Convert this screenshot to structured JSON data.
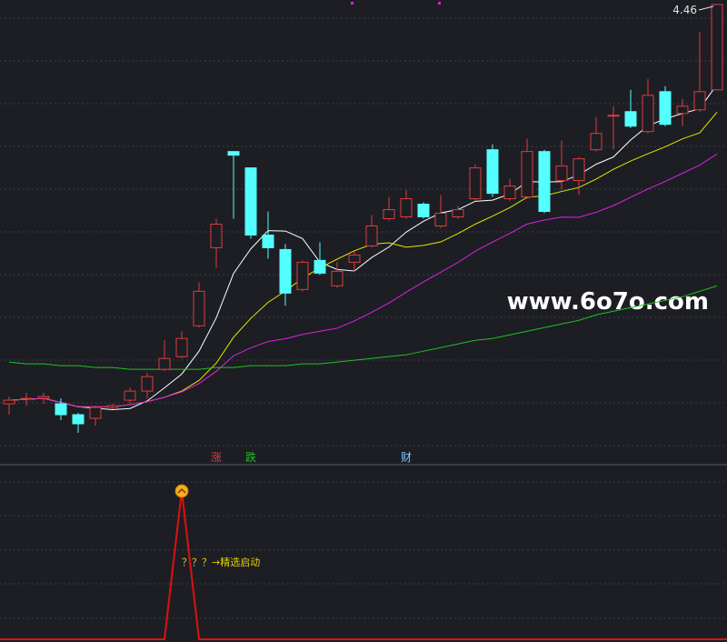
{
  "chart_data": {
    "type": "candlestick",
    "peak_label": "4.46",
    "watermark": "www.6o7o.com",
    "up_color": "#e03c3c",
    "down_color": "#54ffff",
    "ma_colors": [
      "#ffffff",
      "#e6e600",
      "#e020e0"
    ],
    "open": [
      2.26,
      2.29,
      2.29,
      2.26,
      2.2,
      2.18,
      2.24,
      2.28,
      2.33,
      2.45,
      2.52,
      2.69,
      3.12,
      3.65,
      3.56,
      3.19,
      3.11,
      2.89,
      3.05,
      2.91,
      3.04,
      3.13,
      3.28,
      3.29,
      3.36,
      3.24,
      3.29,
      3.39,
      3.66,
      3.39,
      3.4,
      3.65,
      3.49,
      3.49,
      3.66,
      3.85,
      3.87,
      3.76,
      3.98,
      3.86,
      3.88,
      3.99
    ],
    "high": [
      2.3,
      2.32,
      2.32,
      2.29,
      2.21,
      2.25,
      2.26,
      2.35,
      2.43,
      2.61,
      2.66,
      2.93,
      3.28,
      3.65,
      3.56,
      3.32,
      3.14,
      3.05,
      3.15,
      3.04,
      3.1,
      3.3,
      3.4,
      3.44,
      3.37,
      3.41,
      3.35,
      3.58,
      3.69,
      3.5,
      3.72,
      3.66,
      3.71,
      3.62,
      3.84,
      3.9,
      3.99,
      4.05,
      4.01,
      3.94,
      4.31,
      4.46
    ],
    "low": [
      2.2,
      2.25,
      2.26,
      2.17,
      2.1,
      2.14,
      2.23,
      2.26,
      2.29,
      2.44,
      2.51,
      2.68,
      3.01,
      3.28,
      3.17,
      3.06,
      2.8,
      2.88,
      2.97,
      2.9,
      2.99,
      3.12,
      3.27,
      3.28,
      3.28,
      3.23,
      3.28,
      3.38,
      3.4,
      3.38,
      3.39,
      3.31,
      3.44,
      3.41,
      3.65,
      3.66,
      3.78,
      3.75,
      3.79,
      3.79,
      3.87,
      3.99
    ],
    "close": [
      2.28,
      2.29,
      2.3,
      2.2,
      2.15,
      2.24,
      2.25,
      2.33,
      2.41,
      2.51,
      2.62,
      2.88,
      3.25,
      3.63,
      3.19,
      3.12,
      2.87,
      3.04,
      2.98,
      2.99,
      3.08,
      3.24,
      3.33,
      3.39,
      3.29,
      3.31,
      3.33,
      3.56,
      3.42,
      3.46,
      3.65,
      3.32,
      3.57,
      3.61,
      3.75,
      3.85,
      3.79,
      3.96,
      3.8,
      3.9,
      3.98,
      4.46
    ],
    "long_ma": {
      "color": "#22c022",
      "values": [
        2.49,
        2.48,
        2.48,
        2.47,
        2.47,
        2.46,
        2.46,
        2.45,
        2.45,
        2.45,
        2.45,
        2.45,
        2.46,
        2.46,
        2.47,
        2.47,
        2.47,
        2.48,
        2.48,
        2.49,
        2.5,
        2.51,
        2.52,
        2.53,
        2.55,
        2.57,
        2.59,
        2.61,
        2.62,
        2.64,
        2.66,
        2.68,
        2.7,
        2.72,
        2.75,
        2.77,
        2.79,
        2.81,
        2.83,
        2.85,
        2.88,
        2.91
      ]
    },
    "markers": [
      {
        "index": 12,
        "text": "涨",
        "color": "#e03c3c"
      },
      {
        "index": 14,
        "text": "跌",
        "color": "#22c022"
      },
      {
        "index": 23,
        "text": "财",
        "color": "#7fc8ff"
      }
    ],
    "signal": {
      "color": "#e01010",
      "label": "？？？→精选启动",
      "values": [
        0,
        0,
        0,
        0,
        0,
        0,
        0,
        0,
        0,
        0,
        1,
        0,
        0,
        0,
        0,
        0,
        0,
        0,
        0,
        0,
        0,
        0,
        0,
        0,
        0,
        0,
        0,
        0,
        0,
        0,
        0,
        0,
        0,
        0,
        0,
        0,
        0,
        0,
        0,
        0,
        0,
        0
      ]
    }
  }
}
